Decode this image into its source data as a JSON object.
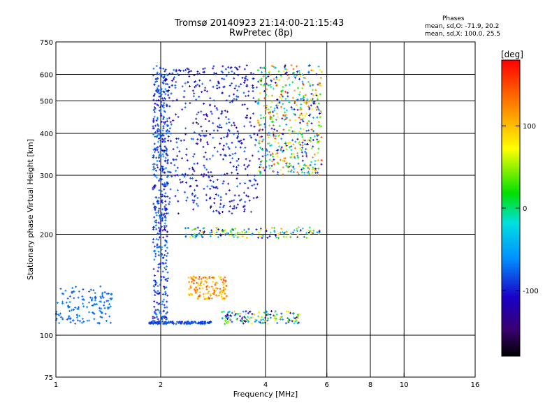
{
  "chart_data": {
    "type": "scatter",
    "title": "Tromsø 20140923 21:14:00-21:15:43",
    "subtitle": "RwPretec (8p)",
    "xlabel": "Frequency [MHz]",
    "ylabel": "Stationary phase Virtual Height [km]",
    "xscale": "log",
    "yscale": "log",
    "xlim": [
      1,
      16
    ],
    "ylim": [
      75,
      750
    ],
    "xticks": [
      "1",
      "2",
      "4",
      "6",
      "8",
      "10",
      "16"
    ],
    "xtick_values": [
      1,
      2,
      4,
      6,
      8,
      10,
      16
    ],
    "x_gridlines": [
      2,
      4,
      6,
      8,
      10
    ],
    "yticks": [
      "75",
      "100",
      "200",
      "300",
      "400",
      "500",
      "600",
      "750"
    ],
    "ytick_values": [
      75,
      100,
      200,
      300,
      400,
      500,
      600,
      750
    ],
    "y_gridlines": [
      100,
      200,
      300,
      400,
      500,
      600
    ],
    "grid": true,
    "phase_box": {
      "title": "Phases",
      "line1": "mean, sd,O: -71.9, 20.2",
      "line2": "mean, sd,X: 100.0, 25.5"
    },
    "colorbar": {
      "label": "[deg]",
      "range": [
        -180,
        180
      ],
      "ticks": [
        "100",
        "0",
        "-100"
      ],
      "tick_values": [
        100,
        0,
        -100
      ],
      "colormap": "rainbow (black-purple-blue-cyan-green-yellow-orange-red)"
    },
    "clusters": [
      {
        "name": "low-frequency oblique trace",
        "x": [
          1.0,
          1.45
        ],
        "y": [
          108,
          140
        ],
        "phase": [
          -85,
          -60
        ]
      },
      {
        "name": "dense vertical column",
        "x": [
          1.9,
          2.1
        ],
        "y": [
          110,
          640
        ],
        "phase": [
          -110,
          -60
        ]
      },
      {
        "name": "main O trace F2",
        "x": [
          2.0,
          3.8
        ],
        "y": [
          230,
          640
        ],
        "phase": [
          -130,
          -70
        ]
      },
      {
        "name": "F2 upper spread",
        "x": [
          3.8,
          5.8
        ],
        "y": [
          300,
          640
        ],
        "phase": [
          -140,
          160
        ]
      },
      {
        "name": "E/F1 layer line",
        "x": [
          1.85,
          2.8
        ],
        "y": [
          108,
          110
        ],
        "phase": [
          -95,
          -75
        ]
      },
      {
        "name": "lower trace near 112 km",
        "x": [
          3.0,
          5.0
        ],
        "y": [
          108,
          118
        ],
        "phase": [
          -150,
          110
        ]
      },
      {
        "name": "X trace near 140 km",
        "x": [
          2.4,
          3.1
        ],
        "y": [
          128,
          150
        ],
        "phase": [
          80,
          150
        ]
      },
      {
        "name": "200 km trace",
        "x": [
          2.3,
          5.8
        ],
        "y": [
          195,
          210
        ],
        "phase": [
          -130,
          110
        ]
      }
    ]
  }
}
